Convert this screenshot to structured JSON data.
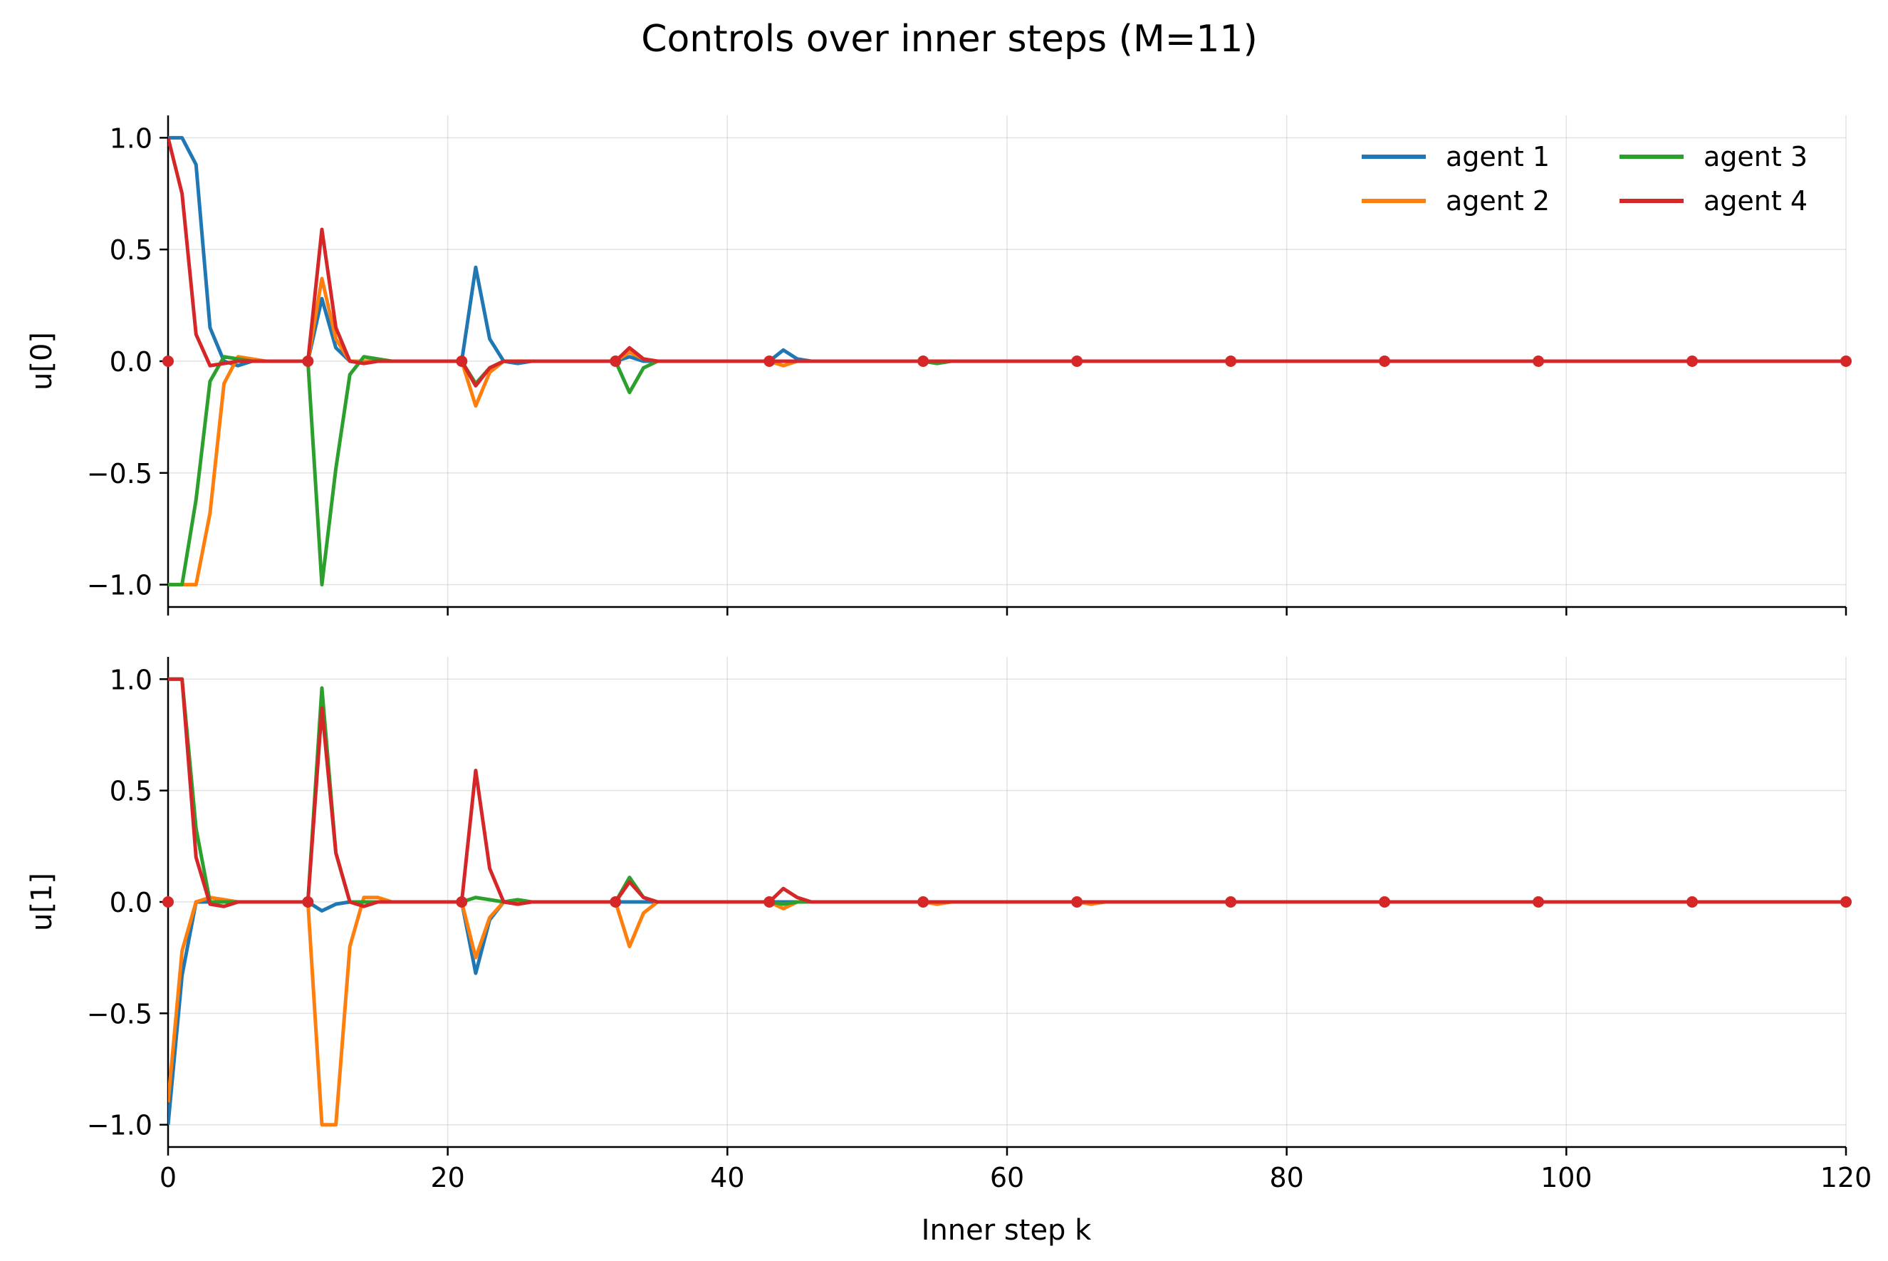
{
  "chart_data": {
    "type": "line",
    "title": "Controls over inner steps (M=11)",
    "xlabel": "Inner step k",
    "xlim": [
      0,
      120
    ],
    "xticks": [
      0,
      20,
      40,
      60,
      80,
      100,
      120
    ],
    "grid": true,
    "legend": {
      "placement": "top-right",
      "columns": 2
    },
    "markers_x": [
      0,
      10,
      21,
      32,
      43,
      54,
      65,
      76,
      87,
      98,
      109,
      120
    ],
    "series_styles": [
      {
        "name": "agent 1",
        "color": "#1f77b4"
      },
      {
        "name": "agent 2",
        "color": "#ff7f0e"
      },
      {
        "name": "agent 3",
        "color": "#2ca02c"
      },
      {
        "name": "agent 4",
        "color": "#d62728"
      }
    ],
    "panels": [
      {
        "ylabel": "u[0]",
        "ylim": [
          -1.1,
          1.1
        ],
        "yticks": [
          1.0,
          0.5,
          0.0,
          -0.5,
          -1.0
        ],
        "ytick_labels": [
          "1.0",
          "0.5",
          "0.0",
          "−0.5",
          "−1.0"
        ],
        "series": [
          {
            "name": "agent 1",
            "points": [
              [
                0,
                1.0
              ],
              [
                1,
                1.0
              ],
              [
                2,
                0.88
              ],
              [
                3,
                0.15
              ],
              [
                4,
                0.0
              ],
              [
                5,
                -0.02
              ],
              [
                6,
                0.0
              ],
              [
                10,
                0.0
              ],
              [
                11,
                0.28
              ],
              [
                12,
                0.06
              ],
              [
                13,
                0.0
              ],
              [
                21,
                0.0
              ],
              [
                22,
                0.42
              ],
              [
                23,
                0.1
              ],
              [
                24,
                0.0
              ],
              [
                25,
                -0.01
              ],
              [
                26,
                0.0
              ],
              [
                32,
                0.0
              ],
              [
                33,
                0.02
              ],
              [
                34,
                0.0
              ],
              [
                43,
                0.0
              ],
              [
                44,
                0.05
              ],
              [
                45,
                0.01
              ],
              [
                46,
                0.0
              ],
              [
                120,
                0.0
              ]
            ]
          },
          {
            "name": "agent 2",
            "points": [
              [
                0,
                -1.0
              ],
              [
                1,
                -1.0
              ],
              [
                2,
                -1.0
              ],
              [
                3,
                -0.68
              ],
              [
                4,
                -0.1
              ],
              [
                5,
                0.02
              ],
              [
                6,
                0.01
              ],
              [
                7,
                0.0
              ],
              [
                10,
                0.0
              ],
              [
                11,
                0.37
              ],
              [
                12,
                0.1
              ],
              [
                13,
                0.0
              ],
              [
                21,
                0.0
              ],
              [
                22,
                -0.2
              ],
              [
                23,
                -0.05
              ],
              [
                24,
                0.0
              ],
              [
                32,
                0.0
              ],
              [
                33,
                0.04
              ],
              [
                34,
                0.01
              ],
              [
                35,
                0.0
              ],
              [
                43,
                0.0
              ],
              [
                44,
                -0.02
              ],
              [
                45,
                0.0
              ],
              [
                120,
                0.0
              ]
            ]
          },
          {
            "name": "agent 3",
            "points": [
              [
                0,
                -1.0
              ],
              [
                1,
                -1.0
              ],
              [
                2,
                -0.62
              ],
              [
                3,
                -0.09
              ],
              [
                4,
                0.02
              ],
              [
                5,
                0.01
              ],
              [
                6,
                0.0
              ],
              [
                10,
                0.0
              ],
              [
                11,
                -1.0
              ],
              [
                12,
                -0.48
              ],
              [
                13,
                -0.06
              ],
              [
                14,
                0.02
              ],
              [
                15,
                0.01
              ],
              [
                16,
                0.0
              ],
              [
                21,
                0.0
              ],
              [
                22,
                -0.1
              ],
              [
                23,
                -0.03
              ],
              [
                24,
                0.0
              ],
              [
                32,
                0.0
              ],
              [
                33,
                -0.14
              ],
              [
                34,
                -0.03
              ],
              [
                35,
                0.0
              ],
              [
                54,
                0.0
              ],
              [
                55,
                -0.01
              ],
              [
                56,
                0.0
              ],
              [
                120,
                0.0
              ]
            ]
          },
          {
            "name": "agent 4",
            "points": [
              [
                0,
                1.0
              ],
              [
                1,
                0.75
              ],
              [
                2,
                0.12
              ],
              [
                3,
                -0.02
              ],
              [
                4,
                -0.01
              ],
              [
                5,
                0.0
              ],
              [
                10,
                0.0
              ],
              [
                11,
                0.59
              ],
              [
                12,
                0.15
              ],
              [
                13,
                0.0
              ],
              [
                14,
                -0.01
              ],
              [
                15,
                0.0
              ],
              [
                21,
                0.0
              ],
              [
                22,
                -0.11
              ],
              [
                23,
                -0.03
              ],
              [
                24,
                0.0
              ],
              [
                32,
                0.0
              ],
              [
                33,
                0.06
              ],
              [
                34,
                0.01
              ],
              [
                35,
                0.0
              ],
              [
                120,
                0.0
              ]
            ]
          }
        ]
      },
      {
        "ylabel": "u[1]",
        "ylim": [
          -1.1,
          1.1
        ],
        "yticks": [
          1.0,
          0.5,
          0.0,
          -0.5,
          -1.0
        ],
        "ytick_labels": [
          "1.0",
          "0.5",
          "0.0",
          "−0.5",
          "−1.0"
        ],
        "series": [
          {
            "name": "agent 1",
            "points": [
              [
                0,
                -1.0
              ],
              [
                1,
                -0.33
              ],
              [
                2,
                0.0
              ],
              [
                3,
                0.0
              ],
              [
                10,
                0.0
              ],
              [
                11,
                -0.04
              ],
              [
                12,
                -0.01
              ],
              [
                13,
                0.0
              ],
              [
                21,
                0.0
              ],
              [
                22,
                -0.32
              ],
              [
                23,
                -0.08
              ],
              [
                24,
                0.0
              ],
              [
                32,
                0.0
              ],
              [
                33,
                0.0
              ],
              [
                34,
                0.0
              ],
              [
                120,
                0.0
              ]
            ]
          },
          {
            "name": "agent 2",
            "points": [
              [
                0,
                -0.9
              ],
              [
                1,
                -0.22
              ],
              [
                2,
                0.0
              ],
              [
                3,
                0.02
              ],
              [
                4,
                0.01
              ],
              [
                5,
                0.0
              ],
              [
                10,
                0.0
              ],
              [
                11,
                -1.0
              ],
              [
                12,
                -1.0
              ],
              [
                13,
                -0.2
              ],
              [
                14,
                0.02
              ],
              [
                15,
                0.02
              ],
              [
                16,
                0.0
              ],
              [
                21,
                0.0
              ],
              [
                22,
                -0.25
              ],
              [
                23,
                -0.07
              ],
              [
                24,
                0.0
              ],
              [
                32,
                0.0
              ],
              [
                33,
                -0.2
              ],
              [
                34,
                -0.05
              ],
              [
                35,
                0.0
              ],
              [
                43,
                0.0
              ],
              [
                44,
                -0.03
              ],
              [
                45,
                0.0
              ],
              [
                54,
                0.0
              ],
              [
                55,
                -0.01
              ],
              [
                56,
                0.0
              ],
              [
                65,
                0.0
              ],
              [
                66,
                -0.01
              ],
              [
                67,
                0.0
              ],
              [
                120,
                0.0
              ]
            ]
          },
          {
            "name": "agent 3",
            "points": [
              [
                0,
                1.0
              ],
              [
                1,
                1.0
              ],
              [
                2,
                0.33
              ],
              [
                3,
                0.0
              ],
              [
                10,
                0.0
              ],
              [
                11,
                0.96
              ],
              [
                12,
                0.22
              ],
              [
                13,
                0.0
              ],
              [
                21,
                0.0
              ],
              [
                22,
                0.02
              ],
              [
                23,
                0.01
              ],
              [
                24,
                0.0
              ],
              [
                25,
                0.01
              ],
              [
                26,
                0.0
              ],
              [
                32,
                0.0
              ],
              [
                33,
                0.11
              ],
              [
                34,
                0.02
              ],
              [
                35,
                0.0
              ],
              [
                43,
                0.0
              ],
              [
                44,
                -0.01
              ],
              [
                45,
                0.0
              ],
              [
                120,
                0.0
              ]
            ]
          },
          {
            "name": "agent 4",
            "points": [
              [
                0,
                1.0
              ],
              [
                1,
                1.0
              ],
              [
                2,
                0.2
              ],
              [
                3,
                -0.01
              ],
              [
                4,
                -0.02
              ],
              [
                5,
                0.0
              ],
              [
                10,
                0.0
              ],
              [
                11,
                0.87
              ],
              [
                12,
                0.22
              ],
              [
                13,
                0.0
              ],
              [
                14,
                -0.02
              ],
              [
                15,
                0.0
              ],
              [
                21,
                0.0
              ],
              [
                22,
                0.59
              ],
              [
                23,
                0.15
              ],
              [
                24,
                0.0
              ],
              [
                25,
                -0.01
              ],
              [
                26,
                0.0
              ],
              [
                32,
                0.0
              ],
              [
                33,
                0.09
              ],
              [
                34,
                0.02
              ],
              [
                35,
                0.0
              ],
              [
                43,
                0.0
              ],
              [
                44,
                0.06
              ],
              [
                45,
                0.02
              ],
              [
                46,
                0.0
              ],
              [
                120,
                0.0
              ]
            ]
          }
        ]
      }
    ]
  }
}
